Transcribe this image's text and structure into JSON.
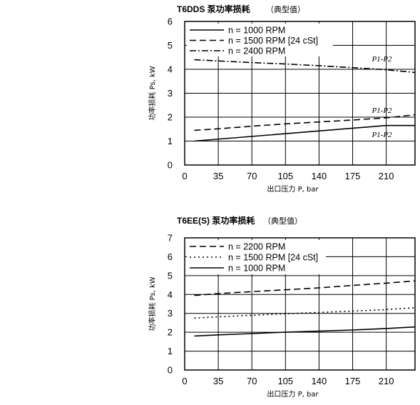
{
  "chart_data": [
    {
      "type": "line",
      "title": "T6DDS 泵功率损耗",
      "subtitle": "（典型值）",
      "xlabel": "出口压力 P, bar",
      "ylabel": "功率损耗  Ps, kW",
      "xlim": [
        0,
        240
      ],
      "ylim": [
        0,
        6
      ],
      "xticks": [
        0,
        35,
        70,
        105,
        140,
        175,
        210
      ],
      "yticks": [
        0,
        1,
        2,
        3,
        4,
        5,
        6
      ],
      "grid": true,
      "legend_position": "top-left",
      "series": [
        {
          "name": "n =  1000 RPM",
          "style": "solid",
          "x": [
            10,
            210,
            240
          ],
          "y": [
            1.0,
            1.65,
            1.65
          ]
        },
        {
          "name": "n =  1500 RPM  [24 cSt]",
          "style": "dashed",
          "x": [
            10,
            30,
            70,
            105,
            140,
            175,
            210,
            240
          ],
          "y": [
            1.45,
            1.5,
            1.62,
            1.72,
            1.8,
            1.88,
            1.97,
            2.1
          ]
        },
        {
          "name": "n =  2400 RPM",
          "style": "dashdot",
          "x": [
            10,
            35,
            70,
            105,
            140,
            175,
            210,
            240
          ],
          "y": [
            4.4,
            4.35,
            4.28,
            4.22,
            4.15,
            4.07,
            3.98,
            3.87
          ]
        }
      ],
      "annotations": [
        {
          "text": "P1-P2",
          "x": 195,
          "y": 4.45
        },
        {
          "text": "P1-P2",
          "x": 195,
          "y": 2.3
        },
        {
          "text": "P1-P2",
          "x": 195,
          "y": 1.28
        }
      ]
    },
    {
      "type": "line",
      "title": "T6EE(S) 泵功率损耗",
      "subtitle": "（典型值）",
      "xlabel": "出口压力 P, bar",
      "ylabel": "功率损耗  Ps, kW",
      "xlim": [
        0,
        240
      ],
      "ylim": [
        0,
        7
      ],
      "xticks": [
        0,
        35,
        70,
        105,
        140,
        175,
        210
      ],
      "yticks": [
        0,
        1,
        2,
        3,
        4,
        5,
        6,
        7
      ],
      "grid": true,
      "legend_position": "top-left",
      "series": [
        {
          "name": "n = 2200 RPM",
          "style": "dashed",
          "x": [
            10,
            35,
            70,
            105,
            140,
            175,
            210,
            240
          ],
          "y": [
            3.95,
            4.05,
            4.15,
            4.25,
            4.35,
            4.48,
            4.6,
            4.72
          ]
        },
        {
          "name": "n = 1500 RPM  [24 cSt]",
          "style": "dotted",
          "x": [
            10,
            35,
            70,
            105,
            140,
            175,
            210,
            240
          ],
          "y": [
            2.75,
            2.82,
            2.9,
            2.98,
            3.05,
            3.12,
            3.2,
            3.3
          ]
        },
        {
          "name": "n = 1000 RPM",
          "style": "solid",
          "x": [
            10,
            35,
            70,
            105,
            140,
            175,
            210,
            240
          ],
          "y": [
            1.8,
            1.86,
            1.93,
            2.0,
            2.06,
            2.12,
            2.2,
            2.28
          ]
        }
      ]
    }
  ]
}
